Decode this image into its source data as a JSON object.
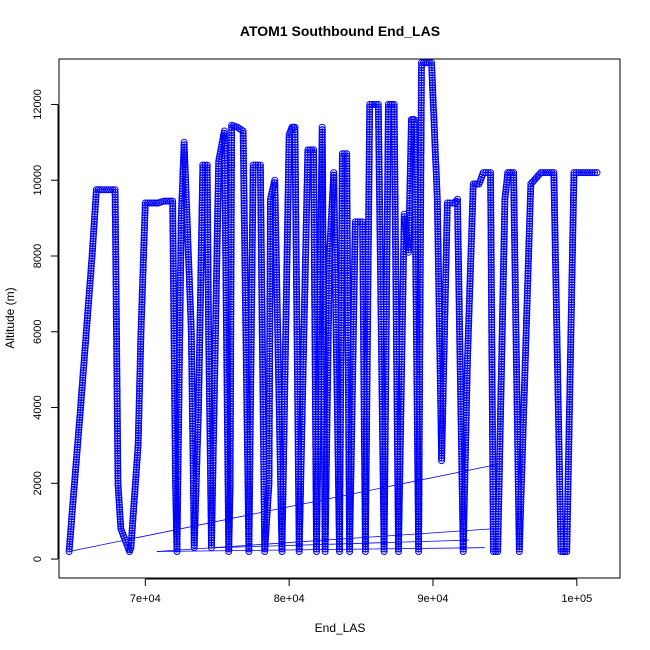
{
  "chart_data": {
    "type": "scatter",
    "title": "ATOM1 Southbound End_LAS",
    "xlabel": "End_LAS",
    "ylabel": "Altitude (m)",
    "xlim": [
      64000,
      103000
    ],
    "ylim": [
      -500,
      13200
    ],
    "xticks": [
      70000,
      80000,
      90000,
      100000
    ],
    "xtick_labels": [
      "7e+04",
      "8e+04",
      "9e+04",
      "1e+05"
    ],
    "yticks": [
      0,
      2000,
      4000,
      6000,
      8000,
      10000,
      12000
    ],
    "ytick_labels": [
      "0",
      "2000",
      "4000",
      "6000",
      "8000",
      "10000",
      "12000"
    ],
    "grid": false,
    "legend": "none",
    "marker": "open-circle",
    "series_color": "#0000ff",
    "series": [
      {
        "x": [
          64700,
          65500,
          66300,
          66600,
          67000,
          67900,
          68100,
          68300,
          68900,
          69000,
          69500,
          69700,
          70000,
          70900,
          71300,
          71900,
          72100,
          72200,
          72500,
          72700,
          73200,
          73400,
          73700,
          74000,
          74300,
          74400,
          74600,
          75100,
          75500,
          75800,
          75900,
          76000,
          76400,
          76800,
          77200,
          77500,
          78000,
          78300,
          78600,
          78700,
          79000,
          79500,
          80000,
          80200,
          80400,
          80700,
          81300,
          81700,
          81900,
          82300,
          82500,
          82800,
          83100,
          83500,
          83700,
          84000,
          84200,
          84600,
          85100,
          85300,
          85600,
          86200,
          86600,
          86900,
          87300,
          87600,
          88000,
          88300,
          88500,
          88700,
          89000,
          89200,
          89900,
          90300,
          90600,
          91000,
          91500,
          91700,
          92100,
          92400,
          92800,
          93200,
          93500,
          94000,
          94200,
          94500,
          95000,
          95200,
          95600,
          96000,
          96800,
          97500,
          98400,
          98900,
          99300,
          99800,
          100300,
          100900,
          101400
        ],
        "y": [
          200,
          4000,
          8000,
          9750,
          9750,
          9750,
          2000,
          800,
          200,
          300,
          3000,
          6000,
          9400,
          9400,
          9450,
          9450,
          2000,
          200,
          9000,
          11000,
          6000,
          300,
          4000,
          10400,
          10400,
          6000,
          300,
          10500,
          11300,
          200,
          2000,
          11450,
          11400,
          11300,
          200,
          10400,
          10400,
          200,
          2000,
          9500,
          10000,
          200,
          11200,
          11400,
          11400,
          200,
          10800,
          10800,
          200,
          11400,
          200,
          8000,
          10200,
          200,
          10700,
          10700,
          200,
          8900,
          8900,
          200,
          12000,
          12000,
          200,
          12000,
          12000,
          200,
          9100,
          8100,
          11600,
          11600,
          200,
          13100,
          13100,
          9500,
          2600,
          9400,
          9400,
          9500,
          200,
          5300,
          9900,
          9900,
          10200,
          10200,
          200,
          200,
          9500,
          10200,
          10200,
          200,
          9900,
          10200,
          10200,
          200,
          200,
          10200,
          10200,
          10200,
          10200
        ]
      }
    ],
    "connector_lines": [
      [
        [
          64700,
          200
        ],
        [
          94500,
          2500
        ]
      ],
      [
        [
          70800,
          200
        ],
        [
          94200,
          800
        ]
      ],
      [
        [
          70800,
          200
        ],
        [
          93600,
          300
        ]
      ],
      [
        [
          74800,
          300
        ],
        [
          92500,
          500
        ]
      ]
    ]
  }
}
